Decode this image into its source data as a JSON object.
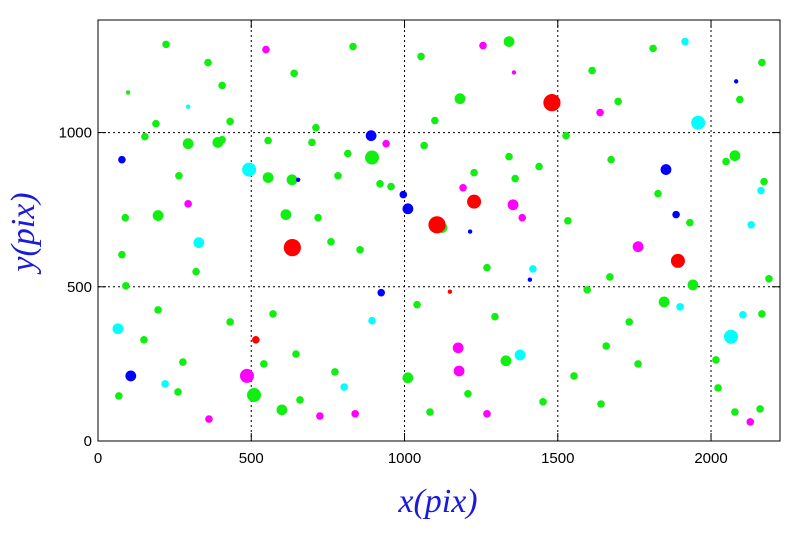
{
  "chart_data": {
    "type": "scatter",
    "x_label": "x(pix)",
    "y_label": "y(pix)",
    "xlim": [
      0,
      2225
    ],
    "ylim": [
      0,
      1365
    ],
    "xticks": [
      0,
      500,
      1000,
      1500,
      2000
    ],
    "yticks": [
      0,
      500,
      1000
    ],
    "grid": true,
    "series": [
      {
        "color": "#11ee11",
        "x": [
          222,
          359,
          405,
          640,
          832,
          1054,
          1341,
          1612,
          1811,
          2166,
          98,
          189,
          391,
          431,
          711,
          1181,
          1099,
          1697,
          2094,
          153,
          294,
          405,
          555,
          698,
          815,
          894,
          1064,
          1341,
          1527,
          1674,
          2078,
          264,
          555,
          633,
          783,
          920,
          1227,
          1361,
          1439,
          1827,
          2173,
          89,
          196,
          613,
          718,
          956,
          1122,
          1533,
          1931,
          2049,
          78,
          320,
          760,
          855,
          1269,
          1670,
          1941,
          2189,
          91,
          196,
          431,
          571,
          646,
          1041,
          1295,
          1596,
          1733,
          1847,
          2166,
          150,
          277,
          541,
          1011,
          1331,
          1553,
          1658,
          1762,
          2016,
          68,
          261,
          509,
          659,
          773,
          1083,
          1207,
          1452,
          1641,
          2023,
          2078,
          2160,
          600
        ],
        "y": [
          1286,
          1227,
          1153,
          1192,
          1279,
          1247,
          1295,
          1201,
          1273,
          1227,
          1130,
          1029,
          968,
          1036,
          1016,
          1110,
          1039,
          1101,
          1107,
          987,
          964,
          977,
          974,
          968,
          932,
          919,
          958,
          922,
          990,
          912,
          925,
          860,
          854,
          847,
          860,
          834,
          870,
          851,
          890,
          802,
          841,
          724,
          731,
          734,
          724,
          825,
          692,
          714,
          708,
          906,
          604,
          549,
          646,
          620,
          562,
          532,
          506,
          526,
          503,
          425,
          386,
          412,
          282,
          442,
          403,
          490,
          386,
          451,
          412,
          328,
          256,
          250,
          205,
          260,
          211,
          308,
          250,
          263,
          146,
          159,
          149,
          133,
          224,
          94,
          153,
          127,
          120,
          172,
          94,
          104,
          101
        ],
        "sizes": [
          2,
          2,
          2,
          2,
          2,
          2,
          3,
          2,
          2,
          2,
          1,
          2,
          3,
          2,
          2,
          3,
          2,
          2,
          2,
          2,
          3,
          2,
          2,
          2,
          2,
          4,
          2,
          2,
          2,
          2,
          3,
          2,
          3,
          3,
          2,
          2,
          2,
          2,
          2,
          2,
          2,
          2,
          3,
          3,
          2,
          2,
          3,
          2,
          2,
          2,
          2,
          2,
          2,
          2,
          2,
          2,
          3,
          2,
          2,
          2,
          2,
          2,
          2,
          2,
          2,
          2,
          2,
          3,
          2,
          2,
          2,
          2,
          3,
          3,
          2,
          2,
          2,
          2,
          2,
          2,
          4,
          2,
          2,
          2,
          2,
          2,
          2,
          2,
          2,
          2,
          3
        ]
      },
      {
        "color": "#ff00ff",
        "x": [
          486,
          1178,
          1175,
          1762,
          1354,
          1384,
          548,
          839,
          940,
          1191,
          1269,
          362,
          294,
          1256,
          1357,
          1638,
          2128,
          724
        ],
        "y": [
          211,
          227,
          302,
          630,
          766,
          724,
          1269,
          88,
          964,
          821,
          88,
          71,
          769,
          1282,
          1195,
          1065,
          62,
          81
        ],
        "sizes": [
          4,
          3,
          3,
          3,
          3,
          2,
          2,
          2,
          2,
          2,
          2,
          2,
          2,
          2,
          1,
          2,
          2,
          2
        ]
      },
      {
        "color": "#00ffff",
        "x": [
          1958,
          493,
          2065,
          65,
          329,
          1377,
          1419,
          2163,
          2104,
          2131,
          1899,
          803,
          894,
          219,
          294,
          1915
        ],
        "y": [
          1032,
          880,
          338,
          364,
          643,
          279,
          558,
          812,
          409,
          701,
          435,
          175,
          390,
          185,
          1084,
          1295
        ],
        "sizes": [
          4,
          4,
          4,
          3,
          3,
          3,
          2,
          2,
          2,
          2,
          2,
          2,
          2,
          2,
          1,
          2
        ]
      },
      {
        "color": "#0000ff",
        "x": [
          891,
          107,
          1853,
          1011,
          924,
          78,
          996,
          1886,
          2082,
          653,
          1214,
          1409
        ],
        "y": [
          990,
          211,
          880,
          753,
          481,
          912,
          799,
          734,
          1166,
          847,
          679,
          523
        ],
        "sizes": [
          3,
          3,
          3,
          3,
          2,
          2,
          2,
          2,
          1,
          1,
          1,
          1
        ]
      },
      {
        "color": "#ff0000",
        "x": [
          1481,
          634,
          1106,
          1227,
          1892,
          515,
          1148
        ],
        "y": [
          1097,
          627,
          701,
          776,
          584,
          328,
          484
        ],
        "sizes": [
          5,
          5,
          5,
          4,
          4,
          2,
          1
        ]
      }
    ]
  }
}
